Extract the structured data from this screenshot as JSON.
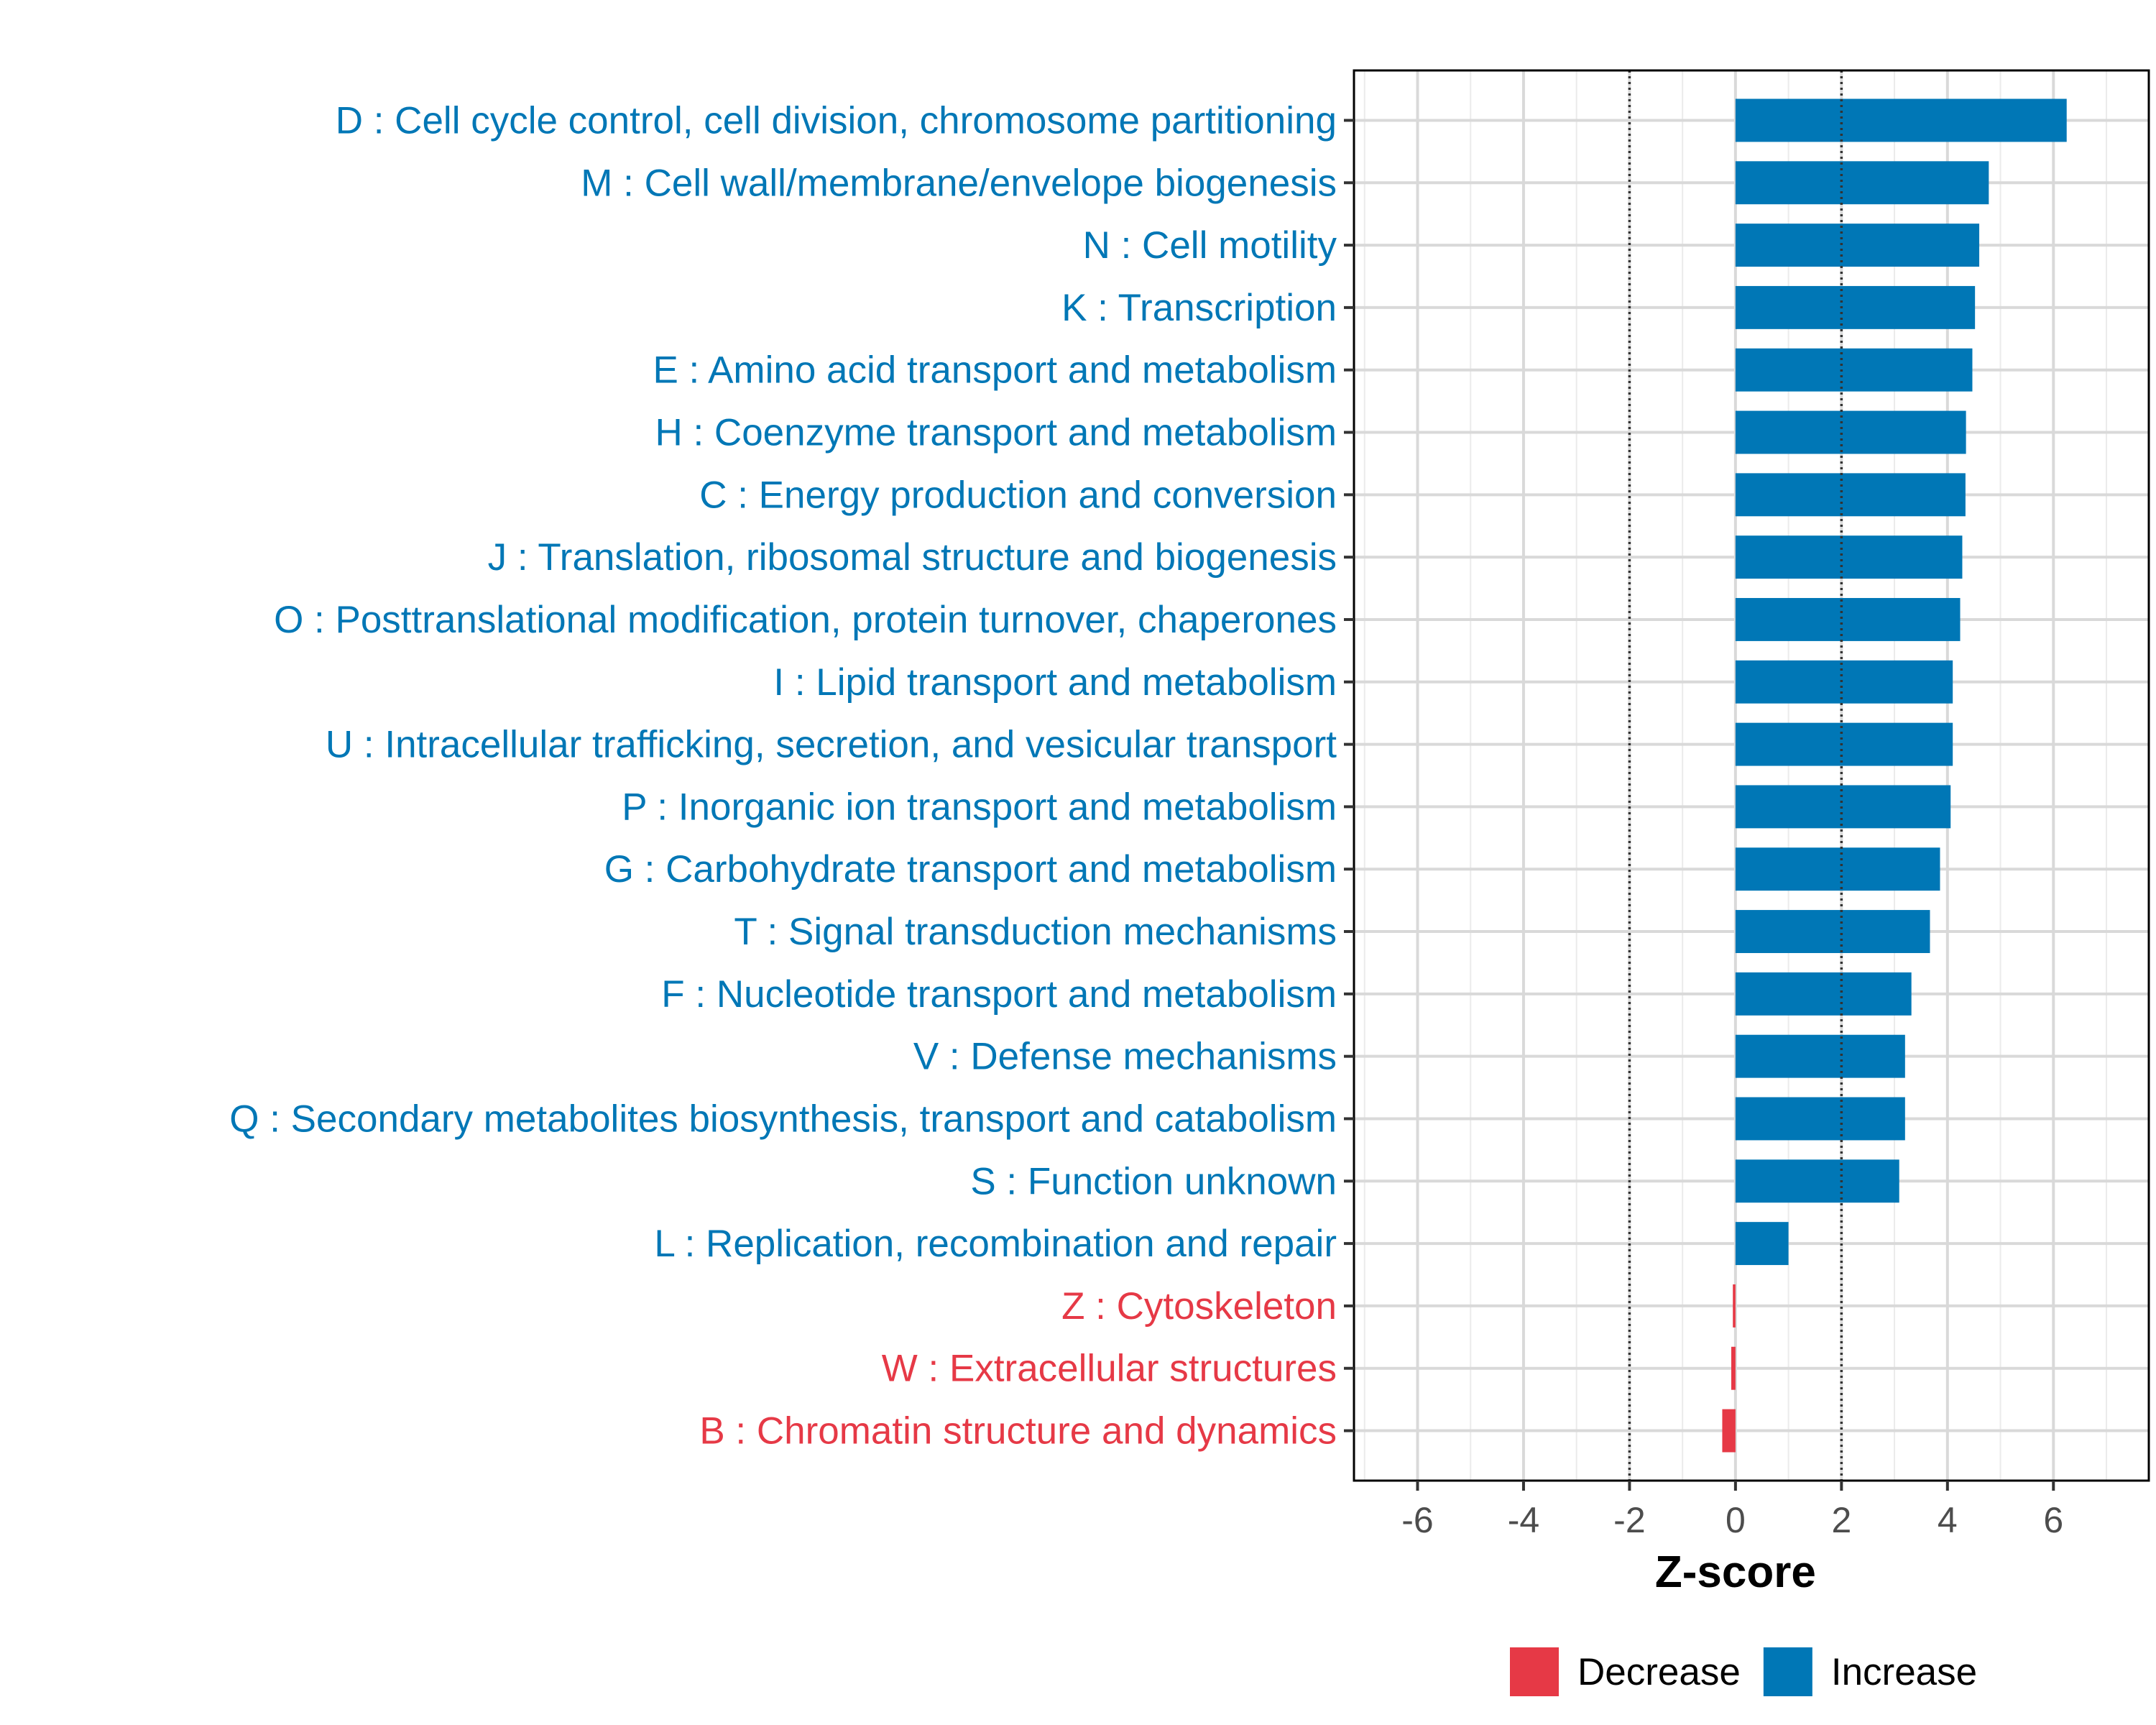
{
  "chart_data": {
    "type": "bar",
    "orientation": "horizontal",
    "title": "",
    "xlabel": "Z-score",
    "ylabel": "",
    "xlim": [
      -7.2,
      7.8
    ],
    "xticks": [
      -6,
      -4,
      -2,
      0,
      2,
      4,
      6
    ],
    "xtick_labels": [
      "-6",
      "-4",
      "-2",
      "0",
      "2",
      "4",
      "6"
    ],
    "reference_lines": [
      -2,
      2
    ],
    "grid": true,
    "legend_position": "bottom",
    "legend": [
      {
        "name": "Decrease",
        "color": "#E63946"
      },
      {
        "name": "Increase",
        "color": "#0077B6"
      }
    ],
    "categories": [
      "D : Cell cycle control, cell division, chromosome partitioning",
      "M : Cell wall/membrane/envelope biogenesis",
      "N : Cell motility",
      "K : Transcription",
      "E : Amino acid transport and metabolism",
      "H : Coenzyme transport and metabolism",
      "C : Energy production and conversion",
      "J : Translation, ribosomal structure and biogenesis",
      "O : Posttranslational modification, protein turnover, chaperones",
      "I : Lipid transport and metabolism",
      "U : Intracellular trafficking, secretion, and vesicular transport",
      "P : Inorganic ion transport and metabolism",
      "G : Carbohydrate transport and metabolism",
      "T : Signal transduction mechanisms",
      "F : Nucleotide transport and metabolism",
      "V : Defense mechanisms",
      "Q : Secondary metabolites biosynthesis, transport and catabolism",
      "S : Function unknown",
      "L : Replication, recombination and repair",
      "Z : Cytoskeleton",
      "W : Extracellular structures",
      "B : Chromatin structure and dynamics"
    ],
    "values": [
      6.25,
      4.78,
      4.6,
      4.52,
      4.47,
      4.35,
      4.34,
      4.28,
      4.24,
      4.1,
      4.1,
      4.06,
      3.86,
      3.67,
      3.32,
      3.2,
      3.2,
      3.09,
      1.0,
      -0.05,
      -0.08,
      -0.25
    ],
    "directions": [
      "Increase",
      "Increase",
      "Increase",
      "Increase",
      "Increase",
      "Increase",
      "Increase",
      "Increase",
      "Increase",
      "Increase",
      "Increase",
      "Increase",
      "Increase",
      "Increase",
      "Increase",
      "Increase",
      "Increase",
      "Increase",
      "Increase",
      "Decrease",
      "Decrease",
      "Decrease"
    ]
  }
}
